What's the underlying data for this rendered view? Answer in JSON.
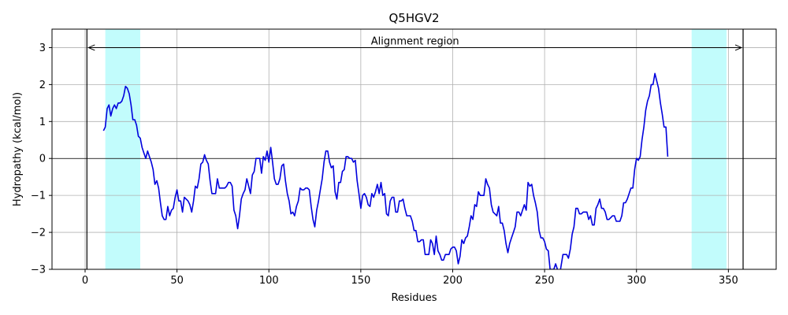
{
  "chart_data": {
    "type": "line",
    "title": "Q5HGV2",
    "xlabel": "Residues",
    "ylabel": "Hydropathy (kcal/mol)",
    "xlim": [
      -18,
      376
    ],
    "ylim": [
      -3,
      3.5
    ],
    "xticks": [
      0,
      50,
      100,
      150,
      200,
      250,
      300,
      350
    ],
    "yticks": [
      -3,
      -2,
      -1,
      0,
      1,
      2,
      3
    ],
    "grid": true,
    "colors": {
      "line": "#0000dd",
      "highlight": "#c2fcfc",
      "axis": "#000000",
      "grid": "#b0b0b0"
    },
    "highlight_regions": [
      [
        11,
        30
      ],
      [
        330,
        349
      ]
    ],
    "reference_lines": {
      "vertical": [
        1,
        358
      ],
      "horizontal": [
        0
      ]
    },
    "annotation": {
      "text": "Alignment region",
      "x_start": 1,
      "x_end": 358,
      "y": 3
    },
    "series": [
      {
        "values": [
          [
            10,
            0.75
          ],
          [
            11,
            0.85
          ],
          [
            12,
            1.35
          ],
          [
            13,
            1.45
          ],
          [
            14,
            1.15
          ],
          [
            15,
            1.35
          ],
          [
            16,
            1.45
          ],
          [
            17,
            1.35
          ],
          [
            18,
            1.5
          ],
          [
            19,
            1.5
          ],
          [
            20,
            1.55
          ],
          [
            21,
            1.7
          ],
          [
            22,
            1.95
          ],
          [
            23,
            1.9
          ],
          [
            24,
            1.75
          ],
          [
            25,
            1.45
          ],
          [
            26,
            1.05
          ],
          [
            27,
            1.05
          ],
          [
            28,
            0.9
          ],
          [
            29,
            0.6
          ],
          [
            30,
            0.55
          ],
          [
            31,
            0.3
          ],
          [
            32,
            0.15
          ],
          [
            33,
            0.0
          ],
          [
            34,
            0.2
          ],
          [
            35,
            0.05
          ],
          [
            36,
            -0.1
          ],
          [
            37,
            -0.3
          ],
          [
            38,
            -0.7
          ],
          [
            39,
            -0.6
          ],
          [
            40,
            -0.8
          ],
          [
            41,
            -1.2
          ],
          [
            42,
            -1.55
          ],
          [
            43,
            -1.65
          ],
          [
            44,
            -1.65
          ],
          [
            45,
            -1.3
          ],
          [
            46,
            -1.55
          ],
          [
            47,
            -1.4
          ],
          [
            48,
            -1.35
          ],
          [
            49,
            -1.05
          ],
          [
            50,
            -0.85
          ],
          [
            51,
            -1.15
          ],
          [
            52,
            -1.15
          ],
          [
            53,
            -1.45
          ],
          [
            54,
            -1.05
          ],
          [
            55,
            -1.1
          ],
          [
            56,
            -1.15
          ],
          [
            57,
            -1.25
          ],
          [
            58,
            -1.45
          ],
          [
            59,
            -1.15
          ],
          [
            60,
            -0.75
          ],
          [
            61,
            -0.8
          ],
          [
            62,
            -0.55
          ],
          [
            63,
            -0.15
          ],
          [
            64,
            -0.1
          ],
          [
            65,
            0.1
          ],
          [
            66,
            -0.05
          ],
          [
            67,
            -0.15
          ],
          [
            68,
            -0.6
          ],
          [
            69,
            -0.95
          ],
          [
            70,
            -0.95
          ],
          [
            71,
            -0.95
          ],
          [
            72,
            -0.55
          ],
          [
            73,
            -0.8
          ],
          [
            74,
            -0.8
          ],
          [
            75,
            -0.8
          ],
          [
            76,
            -0.8
          ],
          [
            77,
            -0.75
          ],
          [
            78,
            -0.65
          ],
          [
            79,
            -0.65
          ],
          [
            80,
            -0.75
          ],
          [
            81,
            -1.4
          ],
          [
            82,
            -1.55
          ],
          [
            83,
            -1.9
          ],
          [
            84,
            -1.55
          ],
          [
            85,
            -1.1
          ],
          [
            86,
            -0.95
          ],
          [
            87,
            -0.85
          ],
          [
            88,
            -0.55
          ],
          [
            89,
            -0.75
          ],
          [
            90,
            -0.95
          ],
          [
            91,
            -0.45
          ],
          [
            92,
            -0.35
          ],
          [
            93,
            0.0
          ],
          [
            94,
            0.0
          ],
          [
            95,
            0.0
          ],
          [
            96,
            -0.4
          ],
          [
            97,
            0.05
          ],
          [
            98,
            -0.05
          ],
          [
            99,
            0.2
          ],
          [
            100,
            -0.1
          ],
          [
            101,
            0.3
          ],
          [
            102,
            -0.1
          ],
          [
            103,
            -0.55
          ],
          [
            104,
            -0.7
          ],
          [
            105,
            -0.7
          ],
          [
            106,
            -0.55
          ],
          [
            107,
            -0.2
          ],
          [
            108,
            -0.15
          ],
          [
            109,
            -0.6
          ],
          [
            110,
            -0.95
          ],
          [
            111,
            -1.15
          ],
          [
            112,
            -1.5
          ],
          [
            113,
            -1.45
          ],
          [
            114,
            -1.55
          ],
          [
            115,
            -1.3
          ],
          [
            116,
            -1.15
          ],
          [
            117,
            -0.8
          ],
          [
            118,
            -0.85
          ],
          [
            119,
            -0.85
          ],
          [
            120,
            -0.8
          ],
          [
            121,
            -0.8
          ],
          [
            122,
            -0.85
          ],
          [
            123,
            -1.3
          ],
          [
            124,
            -1.65
          ],
          [
            125,
            -1.85
          ],
          [
            126,
            -1.4
          ],
          [
            127,
            -1.15
          ],
          [
            128,
            -0.85
          ],
          [
            129,
            -0.55
          ],
          [
            130,
            -0.1
          ],
          [
            131,
            0.2
          ],
          [
            132,
            0.2
          ],
          [
            133,
            -0.1
          ],
          [
            134,
            -0.25
          ],
          [
            135,
            -0.2
          ],
          [
            136,
            -0.9
          ],
          [
            137,
            -1.1
          ],
          [
            138,
            -0.65
          ],
          [
            139,
            -0.65
          ],
          [
            140,
            -0.35
          ],
          [
            141,
            -0.3
          ],
          [
            142,
            0.05
          ],
          [
            143,
            0.05
          ],
          [
            144,
            0.0
          ],
          [
            145,
            0.0
          ],
          [
            146,
            -0.1
          ],
          [
            147,
            -0.05
          ],
          [
            148,
            -0.6
          ],
          [
            149,
            -0.95
          ],
          [
            150,
            -1.35
          ],
          [
            151,
            -1.0
          ],
          [
            152,
            -0.95
          ],
          [
            153,
            -1.05
          ],
          [
            154,
            -1.25
          ],
          [
            155,
            -1.3
          ],
          [
            156,
            -0.95
          ],
          [
            157,
            -1.05
          ],
          [
            158,
            -0.9
          ],
          [
            159,
            -0.7
          ],
          [
            160,
            -0.95
          ],
          [
            161,
            -0.65
          ],
          [
            162,
            -1.0
          ],
          [
            163,
            -0.95
          ],
          [
            164,
            -1.5
          ],
          [
            165,
            -1.55
          ],
          [
            166,
            -1.15
          ],
          [
            167,
            -1.05
          ],
          [
            168,
            -1.05
          ],
          [
            169,
            -1.45
          ],
          [
            170,
            -1.45
          ],
          [
            171,
            -1.15
          ],
          [
            172,
            -1.15
          ],
          [
            173,
            -1.1
          ],
          [
            174,
            -1.35
          ],
          [
            175,
            -1.55
          ],
          [
            176,
            -1.55
          ],
          [
            177,
            -1.55
          ],
          [
            178,
            -1.7
          ],
          [
            179,
            -1.95
          ],
          [
            180,
            -1.95
          ],
          [
            181,
            -2.25
          ],
          [
            182,
            -2.25
          ],
          [
            183,
            -2.2
          ],
          [
            184,
            -2.2
          ],
          [
            185,
            -2.6
          ],
          [
            186,
            -2.6
          ],
          [
            187,
            -2.6
          ],
          [
            188,
            -2.2
          ],
          [
            189,
            -2.3
          ],
          [
            190,
            -2.6
          ],
          [
            191,
            -2.1
          ],
          [
            192,
            -2.5
          ],
          [
            193,
            -2.6
          ],
          [
            194,
            -2.75
          ],
          [
            195,
            -2.75
          ],
          [
            196,
            -2.6
          ],
          [
            197,
            -2.6
          ],
          [
            198,
            -2.6
          ],
          [
            199,
            -2.45
          ],
          [
            200,
            -2.4
          ],
          [
            201,
            -2.4
          ],
          [
            202,
            -2.5
          ],
          [
            203,
            -2.85
          ],
          [
            204,
            -2.65
          ],
          [
            205,
            -2.2
          ],
          [
            206,
            -2.3
          ],
          [
            207,
            -2.15
          ],
          [
            208,
            -2.1
          ],
          [
            209,
            -1.85
          ],
          [
            210,
            -1.55
          ],
          [
            211,
            -1.65
          ],
          [
            212,
            -1.25
          ],
          [
            213,
            -1.3
          ],
          [
            214,
            -0.9
          ],
          [
            215,
            -1.0
          ],
          [
            216,
            -1.0
          ],
          [
            217,
            -1.0
          ],
          [
            218,
            -0.55
          ],
          [
            219,
            -0.7
          ],
          [
            220,
            -0.8
          ],
          [
            221,
            -1.25
          ],
          [
            222,
            -1.45
          ],
          [
            223,
            -1.5
          ],
          [
            224,
            -1.55
          ],
          [
            225,
            -1.3
          ],
          [
            226,
            -1.75
          ],
          [
            227,
            -1.75
          ],
          [
            228,
            -1.95
          ],
          [
            229,
            -2.3
          ],
          [
            230,
            -2.55
          ],
          [
            231,
            -2.3
          ],
          [
            232,
            -2.15
          ],
          [
            233,
            -2.0
          ],
          [
            234,
            -1.85
          ],
          [
            235,
            -1.45
          ],
          [
            236,
            -1.45
          ],
          [
            237,
            -1.55
          ],
          [
            238,
            -1.4
          ],
          [
            239,
            -1.25
          ],
          [
            240,
            -1.4
          ],
          [
            241,
            -0.65
          ],
          [
            242,
            -0.75
          ],
          [
            243,
            -0.7
          ],
          [
            244,
            -1.0
          ],
          [
            245,
            -1.2
          ],
          [
            246,
            -1.45
          ],
          [
            247,
            -1.95
          ],
          [
            248,
            -2.15
          ],
          [
            249,
            -2.15
          ],
          [
            250,
            -2.25
          ],
          [
            251,
            -2.45
          ],
          [
            252,
            -2.5
          ],
          [
            253,
            -3.0
          ],
          [
            254,
            -3.0
          ],
          [
            255,
            -3.0
          ],
          [
            256,
            -2.85
          ],
          [
            257,
            -3.0
          ],
          [
            258,
            -3.2
          ],
          [
            259,
            -2.9
          ],
          [
            260,
            -2.6
          ],
          [
            261,
            -2.6
          ],
          [
            262,
            -2.6
          ],
          [
            263,
            -2.7
          ],
          [
            264,
            -2.45
          ],
          [
            265,
            -2.05
          ],
          [
            266,
            -1.85
          ],
          [
            267,
            -1.35
          ],
          [
            268,
            -1.35
          ],
          [
            269,
            -1.5
          ],
          [
            270,
            -1.5
          ],
          [
            271,
            -1.45
          ],
          [
            272,
            -1.45
          ],
          [
            273,
            -1.45
          ],
          [
            274,
            -1.65
          ],
          [
            275,
            -1.55
          ],
          [
            276,
            -1.8
          ],
          [
            277,
            -1.8
          ],
          [
            278,
            -1.35
          ],
          [
            279,
            -1.25
          ],
          [
            280,
            -1.1
          ],
          [
            281,
            -1.35
          ],
          [
            282,
            -1.35
          ],
          [
            283,
            -1.45
          ],
          [
            284,
            -1.65
          ],
          [
            285,
            -1.65
          ],
          [
            286,
            -1.6
          ],
          [
            287,
            -1.55
          ],
          [
            288,
            -1.55
          ],
          [
            289,
            -1.7
          ],
          [
            290,
            -1.7
          ],
          [
            291,
            -1.7
          ],
          [
            292,
            -1.55
          ],
          [
            293,
            -1.2
          ],
          [
            294,
            -1.2
          ],
          [
            295,
            -1.1
          ],
          [
            296,
            -0.95
          ],
          [
            297,
            -0.8
          ],
          [
            298,
            -0.8
          ],
          [
            299,
            -0.3
          ],
          [
            300,
            0.0
          ],
          [
            301,
            -0.05
          ],
          [
            302,
            0.05
          ],
          [
            303,
            0.5
          ],
          [
            304,
            0.85
          ],
          [
            305,
            1.3
          ],
          [
            306,
            1.55
          ],
          [
            307,
            1.7
          ],
          [
            308,
            2.0
          ],
          [
            309,
            2.0
          ],
          [
            310,
            2.3
          ],
          [
            311,
            2.1
          ],
          [
            312,
            1.9
          ],
          [
            313,
            1.5
          ],
          [
            314,
            1.2
          ],
          [
            315,
            0.85
          ],
          [
            316,
            0.85
          ],
          [
            317,
            0.05
          ]
        ]
      }
    ]
  }
}
